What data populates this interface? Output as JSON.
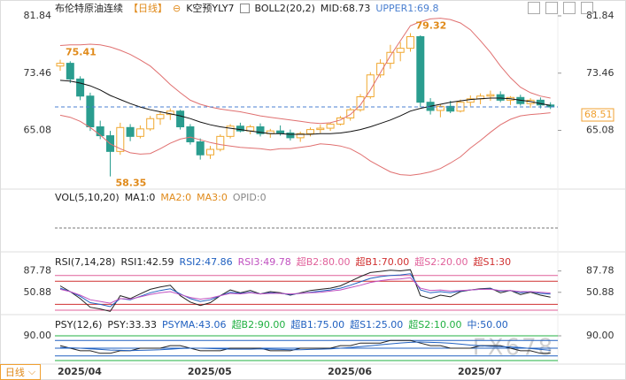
{
  "header": {
    "instrument": "布伦特原油连续",
    "period": "【日线】",
    "signal": "K空预YLY7"
  },
  "watermark": "FX678",
  "tab": "日线",
  "chart_data": [
    {
      "type": "candlestick",
      "indicator": "BOLL2(20,2)",
      "categories": [
        "2025/04",
        null,
        null,
        null,
        null,
        null,
        null,
        null,
        null,
        null,
        null,
        null,
        null,
        "2025/05",
        null,
        null,
        null,
        null,
        null,
        null,
        null,
        null,
        null,
        null,
        null,
        null,
        null,
        "2025/06",
        null,
        null,
        null,
        null,
        null,
        null,
        null,
        null,
        null,
        null,
        null,
        null,
        "2025/07",
        null,
        null,
        null,
        null,
        null,
        null,
        null,
        null,
        null
      ],
      "open": [
        74.5,
        74.9,
        72.6,
        70.1,
        65.6,
        64.3,
        62.0,
        65.5,
        64.2,
        65.3,
        66.8,
        67.4,
        67.9,
        65.6,
        63.4,
        61.5,
        62.3,
        64.2,
        65.7,
        65.0,
        65.6,
        64.6,
        65.0,
        64.7,
        64.0,
        64.6,
        65.2,
        65.4,
        66.0,
        66.9,
        68.1,
        70.0,
        73.2,
        74.9,
        76.5,
        77.1,
        78.8,
        69.2,
        68.0,
        68.6,
        67.9,
        69.2,
        69.7,
        70.1,
        70.3,
        69.5,
        69.9,
        69.0,
        69.5,
        68.8
      ],
      "high": [
        75.41,
        75.2,
        73.0,
        70.6,
        66.5,
        65.0,
        66.2,
        66.0,
        65.8,
        67.2,
        67.8,
        68.3,
        68.1,
        66.0,
        63.9,
        62.8,
        64.5,
        66.0,
        66.2,
        65.9,
        66.1,
        65.3,
        65.8,
        65.2,
        64.9,
        65.5,
        65.9,
        66.2,
        67.2,
        68.4,
        70.4,
        73.6,
        75.5,
        77.6,
        78.0,
        79.32,
        79.0,
        69.8,
        68.9,
        69.4,
        69.6,
        70.2,
        70.5,
        70.9,
        70.8,
        70.1,
        70.3,
        69.8,
        69.9,
        69.2
      ],
      "low": [
        73.8,
        72.0,
        69.5,
        65.0,
        63.8,
        58.35,
        61.5,
        63.5,
        63.9,
        65.0,
        65.9,
        66.6,
        65.2,
        63.0,
        60.8,
        60.9,
        62.0,
        63.9,
        64.8,
        64.5,
        64.2,
        64.0,
        64.3,
        63.6,
        63.4,
        64.2,
        64.7,
        65.0,
        65.8,
        66.5,
        67.8,
        69.7,
        72.8,
        74.1,
        75.2,
        76.6,
        68.5,
        67.4,
        67.0,
        67.6,
        67.7,
        68.6,
        68.9,
        69.4,
        69.2,
        68.8,
        68.7,
        68.4,
        68.3,
        68.2
      ],
      "close": [
        74.9,
        72.6,
        70.1,
        65.6,
        64.3,
        62.0,
        65.5,
        64.2,
        65.3,
        66.8,
        67.4,
        67.9,
        65.6,
        63.4,
        61.5,
        62.3,
        64.2,
        65.7,
        65.0,
        65.6,
        64.6,
        65.0,
        64.7,
        64.0,
        64.6,
        65.2,
        65.4,
        66.0,
        66.9,
        68.1,
        70.0,
        73.2,
        74.9,
        76.5,
        77.1,
        78.8,
        69.2,
        68.0,
        68.6,
        67.9,
        69.2,
        69.7,
        70.1,
        70.3,
        69.5,
        69.9,
        69.0,
        69.5,
        68.8,
        68.51
      ],
      "up_color": "#f0a830",
      "down_color": "#2a9d8f",
      "series": [
        {
          "name": "MID",
          "color": "#111111",
          "values": [
            72.4,
            72.3,
            72.0,
            71.6,
            71.0,
            70.2,
            69.6,
            69.0,
            68.5,
            68.1,
            67.8,
            67.5,
            67.2,
            66.8,
            66.3,
            65.9,
            65.6,
            65.4,
            65.2,
            65.0,
            64.8,
            64.6,
            64.6,
            64.5,
            64.5,
            64.5,
            64.6,
            64.6,
            64.7,
            64.9,
            65.2,
            65.6,
            66.1,
            66.6,
            67.2,
            67.9,
            68.3,
            68.6,
            68.9,
            69.2,
            69.4,
            69.6,
            69.7,
            69.8,
            69.8,
            69.7,
            69.5,
            69.3,
            69.0,
            68.73
          ]
        },
        {
          "name": "UPPER1",
          "color": "#e07070",
          "values": [
            77.5,
            77.6,
            77.6,
            77.7,
            77.6,
            77.3,
            76.8,
            76.2,
            75.4,
            74.5,
            73.2,
            71.8,
            70.6,
            69.5,
            68.9,
            68.5,
            68.2,
            68.0,
            67.8,
            67.5,
            67.2,
            67.0,
            66.8,
            66.6,
            66.4,
            66.2,
            66.1,
            66.2,
            66.6,
            67.4,
            68.8,
            71.0,
            73.5,
            76.0,
            78.2,
            80.4,
            81.0,
            81.4,
            81.5,
            81.3,
            80.8,
            79.8,
            78.2,
            76.5,
            74.5,
            72.8,
            71.4,
            70.6,
            70.1,
            69.8
          ]
        },
        {
          "color": "#e07070",
          "values": [
            67.3,
            67.0,
            66.4,
            65.5,
            64.4,
            63.1,
            62.4,
            61.8,
            61.6,
            61.7,
            62.4,
            63.2,
            63.8,
            64.1,
            63.7,
            63.3,
            63.0,
            62.8,
            62.6,
            62.5,
            62.4,
            62.2,
            62.4,
            62.4,
            62.6,
            62.8,
            63.1,
            63.0,
            62.8,
            62.4,
            61.6,
            60.6,
            59.8,
            59.0,
            58.6,
            58.5,
            58.7,
            59.0,
            59.5,
            60.3,
            61.2,
            62.5,
            63.6,
            64.8,
            65.9,
            66.7,
            67.2,
            67.4,
            67.5,
            67.66
          ]
        }
      ],
      "ylim": [
        57,
        83.13
      ],
      "yticks": [
        81.84,
        73.46,
        65.08
      ],
      "last_color": "#f0a030"
    },
    {
      "type": "volume",
      "title": "VOL(5,10,20)",
      "legend": [
        {
          "name": "MA1",
          "value": 0,
          "color": "#222222"
        },
        {
          "name": "MA2",
          "value": 0,
          "color": "#e08a1a"
        },
        {
          "name": "MA3",
          "value": 0,
          "color": "#e08a1a"
        },
        {
          "name": "OPID",
          "value": 0,
          "color": "#888888"
        }
      ]
    },
    {
      "type": "line",
      "title": "RSI(7,14,28)",
      "ylim": [
        18.4,
        102.5
      ],
      "yticks": [
        87.78,
        50.88
      ],
      "series": [
        {
          "name": "RSI1",
          "color": "#222222",
          "values": [
            62,
            52,
            40,
            25,
            22,
            18,
            45,
            40,
            48,
            56,
            60,
            63,
            45,
            34,
            28,
            33,
            45,
            55,
            50,
            54,
            48,
            52,
            50,
            46,
            50,
            54,
            56,
            58,
            62,
            70,
            78,
            85,
            87,
            89,
            88,
            90,
            45,
            40,
            46,
            43,
            52,
            55,
            57,
            58,
            50,
            54,
            47,
            51,
            46,
            42.59
          ]
        },
        {
          "name": "RSI2",
          "color": "#2060c0",
          "values": [
            58,
            52,
            44,
            33,
            30,
            26,
            40,
            38,
            44,
            50,
            54,
            57,
            48,
            40,
            35,
            38,
            45,
            51,
            49,
            51,
            48,
            50,
            49,
            47,
            49,
            51,
            53,
            55,
            58,
            63,
            69,
            75,
            78,
            80,
            81,
            83,
            55,
            50,
            52,
            50,
            53,
            55,
            56,
            57,
            53,
            54,
            50,
            52,
            49,
            47.86
          ]
        },
        {
          "name": "RSI3",
          "color": "#c050c0",
          "values": [
            56,
            52,
            46,
            38,
            35,
            32,
            40,
            39,
            43,
            47,
            50,
            52,
            47,
            42,
            39,
            41,
            45,
            49,
            48,
            50,
            48,
            49,
            49,
            48,
            49,
            50,
            51,
            53,
            55,
            59,
            63,
            68,
            71,
            73,
            74,
            76,
            58,
            54,
            55,
            53,
            54,
            55,
            56,
            56,
            54,
            54,
            52,
            52,
            51,
            49.78
          ]
        }
      ],
      "levels": [
        {
          "name": "超B2",
          "value": 80,
          "label": "80.00",
          "color": "#e0609a"
        },
        {
          "name": "超B1",
          "value": 70,
          "label": "70.00",
          "color": "#d03030"
        },
        {
          "name": "超S2",
          "value": 20,
          "label": "20.00",
          "color": "#e0609a"
        },
        {
          "name": "超S1",
          "value": 30,
          "color": "#d03030"
        }
      ]
    },
    {
      "type": "line",
      "title": "PSY(12,6)",
      "ylim": [
        0,
        100
      ],
      "yticks": [
        {
          "value": 90,
          "label": "90.00"
        }
      ],
      "series": [
        {
          "name": "PSY",
          "color": "#222222",
          "values": [
            58.33,
            50,
            41.67,
            41.67,
            33.33,
            33.33,
            41.67,
            41.67,
            50,
            50,
            50,
            58.33,
            58.33,
            50,
            41.67,
            41.67,
            41.67,
            50,
            50,
            50,
            50,
            41.67,
            41.67,
            41.67,
            50,
            50,
            50,
            50,
            58.33,
            58.33,
            66.67,
            66.67,
            66.67,
            75,
            75,
            75,
            66.67,
            58.33,
            58.33,
            50,
            50,
            50,
            58.33,
            58.33,
            58.33,
            50,
            41.67,
            41.67,
            33.33,
            33.33
          ]
        },
        {
          "name": "PSYMA",
          "color": "#2060c0",
          "values": [
            52,
            51,
            50,
            48,
            46,
            44,
            43,
            42,
            43,
            44,
            45,
            47,
            49,
            50,
            50,
            49,
            48,
            47,
            47,
            47,
            48,
            47,
            46,
            45,
            45,
            46,
            47,
            48,
            50,
            52,
            55,
            58,
            61,
            64,
            67,
            69,
            70,
            69,
            68,
            66,
            63,
            60,
            58,
            56,
            55,
            54,
            52,
            49,
            46,
            43.06
          ]
        }
      ],
      "levels": [
        {
          "name": "超B2",
          "value": 90,
          "label": "90.00",
          "color": "#20b040"
        },
        {
          "name": "超B1",
          "value": 75,
          "label": "75.00",
          "color": "#2060c0"
        },
        {
          "name": "超S1",
          "value": 25,
          "label": "25.00",
          "color": "#2060c0"
        },
        {
          "name": "超S2",
          "value": 10,
          "label": "10.00",
          "color": "#20b040"
        },
        {
          "name": "中",
          "value": 50,
          "label": "50.00",
          "color": "#2060c0"
        }
      ]
    }
  ]
}
